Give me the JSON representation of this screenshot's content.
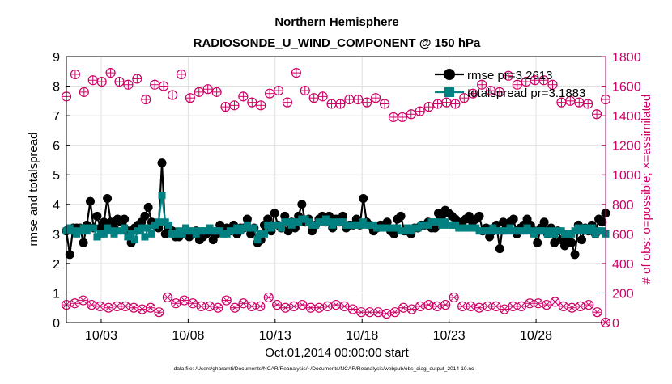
{
  "title_line1": "Northern Hemisphere",
  "title_line2": "RADIOSONDE_U_WIND_COMPONENT @ 150 hPa",
  "xlabel": "Oct.01,2014 00:00:00 start",
  "footer": "data file: /Users/gharamti/Documents/NCAR/Reanalysis/~/Documents/NCAR/Reanalysis/webpub/obs_diag_output_2014-10.nc",
  "colors": {
    "left_axis": "#000000",
    "right_axis": "#cc0066",
    "rmse": "#000000",
    "spread": "#008080",
    "grid": "#e0e0e0"
  },
  "chart_data": {
    "type": "line",
    "xlabel": "Oct.01,2014 00:00:00 start",
    "x_ticks": [
      {
        "label": "10/03",
        "day": 3
      },
      {
        "label": "10/08",
        "day": 8
      },
      {
        "label": "10/13",
        "day": 13
      },
      {
        "label": "10/18",
        "day": 18
      },
      {
        "label": "10/23",
        "day": 23
      },
      {
        "label": "10/28",
        "day": 28
      }
    ],
    "xlim": [
      1.0,
      32.0
    ],
    "ylabel_left": "rmse and totalspread",
    "ylim_left": [
      0,
      9
    ],
    "yticks_left": [
      "0",
      "1",
      "2",
      "3",
      "4",
      "5",
      "6",
      "7",
      "8",
      "9"
    ],
    "ylabel_right": "# of obs: o=possible; ×=assimilated",
    "ylim_right": [
      0,
      1800
    ],
    "yticks_right": [
      "0",
      "200",
      "400",
      "600",
      "800",
      "1000",
      "1200",
      "1400",
      "1600",
      "1800"
    ],
    "legend": [
      {
        "label": "rmse pr=3.2613",
        "series": "rmse"
      },
      {
        "label": "totalspread pr=3.1883",
        "series": "totalspread"
      }
    ],
    "series": [
      {
        "name": "rmse",
        "axis": "left",
        "marker": "circle",
        "values": [
          3.1,
          2.3,
          3.2,
          3.2,
          3.2,
          2.7,
          3.3,
          4.1,
          3.2,
          3.6,
          3.2,
          3.4,
          4.2,
          3.4,
          3.2,
          3.5,
          3.4,
          3.5,
          3.1,
          2.7,
          3.2,
          3.3,
          3.4,
          3.6,
          3.9,
          3.4,
          3.3,
          3.2,
          5.4,
          3.0,
          3.2,
          3.1,
          2.9,
          2.9,
          3.0,
          3.1,
          2.9,
          3.0,
          3.1,
          2.8,
          2.9,
          3.0,
          3.1,
          2.8,
          3.0,
          3.3,
          3.1,
          3.2,
          3.1,
          3.3,
          3.0,
          3.2,
          3.2,
          3.5,
          3.0,
          3.2,
          2.7,
          2.8,
          3.3,
          3.5,
          3.1,
          3.7,
          3.3,
          3.2,
          3.6,
          3.1,
          3.4,
          3.2,
          3.6,
          4.0,
          3.4,
          3.5,
          3.1,
          3.3,
          3.5,
          3.6,
          3.4,
          3.6,
          3.2,
          3.5,
          3.4,
          3.6,
          3.2,
          3.3,
          3.3,
          3.5,
          3.3,
          4.2,
          3.4,
          3.3,
          3.1,
          3.2,
          3.3,
          3.3,
          3.4,
          3.1,
          3.0,
          3.5,
          3.6,
          3.1,
          3.1,
          3.0,
          3.2,
          3.2,
          3.3,
          3.3,
          3.4,
          3.2,
          3.2,
          3.7,
          3.6,
          3.8,
          3.7,
          3.6,
          3.5,
          3.3,
          3.4,
          3.5,
          3.6,
          3.4,
          3.5,
          3.6,
          3.1,
          3.2,
          2.9,
          3.1,
          3.3,
          2.5,
          3.4,
          3.3,
          3.4,
          3.5,
          3.0,
          3.2,
          3.3,
          3.5,
          3.3,
          3.1,
          2.7,
          3.2,
          3.4,
          3.0,
          3.2,
          2.7,
          3.1,
          2.8,
          2.6,
          2.9,
          2.7,
          2.3,
          3.3,
          2.8,
          3.2,
          3.1,
          3.3,
          3.0,
          3.5,
          3.4,
          3.7
        ]
      },
      {
        "name": "totalspread",
        "axis": "left",
        "marker": "square",
        "values": [
          3.1,
          3.2,
          3.1,
          3.0,
          3.1,
          3.2,
          3.1,
          3.2,
          3.2,
          2.9,
          3.0,
          3.0,
          3.2,
          3.1,
          3.0,
          3.1,
          3.1,
          3.2,
          2.9,
          3.0,
          2.8,
          3.1,
          3.2,
          2.9,
          3.2,
          3.0,
          3.3,
          3.4,
          4.3,
          3.4,
          3.3,
          3.0,
          3.0,
          3.1,
          3.0,
          3.2,
          3.1,
          3.1,
          3.0,
          3.1,
          3.1,
          3.1,
          3.2,
          3.1,
          3.1,
          3.1,
          3.0,
          3.0,
          3.1,
          3.1,
          3.2,
          3.1,
          3.2,
          3.3,
          3.2,
          3.2,
          2.8,
          3.0,
          3.0,
          3.3,
          3.2,
          3.3,
          3.3,
          3.2,
          3.4,
          3.4,
          3.3,
          3.4,
          3.4,
          3.5,
          3.5,
          3.4,
          3.3,
          3.3,
          3.4,
          3.4,
          3.5,
          3.4,
          3.3,
          3.4,
          3.4,
          3.4,
          3.3,
          3.3,
          3.3,
          3.3,
          3.3,
          3.4,
          3.3,
          3.3,
          3.3,
          3.2,
          3.2,
          3.2,
          3.2,
          3.2,
          3.2,
          3.2,
          3.1,
          3.1,
          3.2,
          3.1,
          3.2,
          3.2,
          3.3,
          3.3,
          3.3,
          3.4,
          3.4,
          3.4,
          3.3,
          3.4,
          3.3,
          3.3,
          3.3,
          3.2,
          3.2,
          3.2,
          3.2,
          3.2,
          3.2,
          3.1,
          3.1,
          3.1,
          3.1,
          3.2,
          3.1,
          3.1,
          3.1,
          3.1,
          3.2,
          3.1,
          3.1,
          3.1,
          3.1,
          3.2,
          3.1,
          3.0,
          3.1,
          3.1,
          3.1,
          3.0,
          3.1,
          3.0,
          3.1,
          3.1,
          3.0,
          3.0,
          3.0,
          3.1,
          3.2,
          3.1,
          3.2,
          3.1,
          3.2,
          3.0,
          3.1,
          3.1,
          3.0
        ]
      },
      {
        "name": "possible",
        "axis": "right",
        "marker": "circle-plus",
        "values": [
          1530,
          1680,
          1560,
          1640,
          1630,
          1690,
          1630,
          1610,
          1650,
          1510,
          1610,
          1600,
          1540,
          1680,
          1520,
          1560,
          1580,
          1560,
          1460,
          1470,
          1530,
          1490,
          1470,
          1550,
          1570,
          1490,
          1690,
          1570,
          1520,
          1530,
          1480,
          1480,
          1510,
          1510,
          1490,
          1520,
          1480,
          1390,
          1390,
          1410,
          1430,
          1460,
          1480,
          1490,
          1480,
          1520,
          1550,
          1610,
          1570,
          1560,
          1670,
          1610,
          1630,
          1640,
          1640,
          1610,
          1490,
          1500,
          1490,
          1480,
          1410,
          1510
        ]
      },
      {
        "name": "assimilated",
        "axis": "right",
        "marker": "asterisk",
        "values": [
          120,
          130,
          150,
          120,
          110,
          100,
          110,
          110,
          100,
          90,
          100,
          70,
          170,
          130,
          150,
          130,
          110,
          110,
          100,
          150,
          100,
          130,
          110,
          110,
          170,
          120,
          100,
          110,
          120,
          100,
          100,
          110,
          120,
          110,
          90,
          70,
          70,
          70,
          60,
          70,
          100,
          90,
          110,
          120,
          110,
          120,
          170,
          110,
          110,
          100,
          110,
          110,
          90,
          110,
          110,
          130,
          130,
          120,
          140,
          110,
          100,
          110,
          120,
          70,
          0
        ]
      }
    ]
  }
}
